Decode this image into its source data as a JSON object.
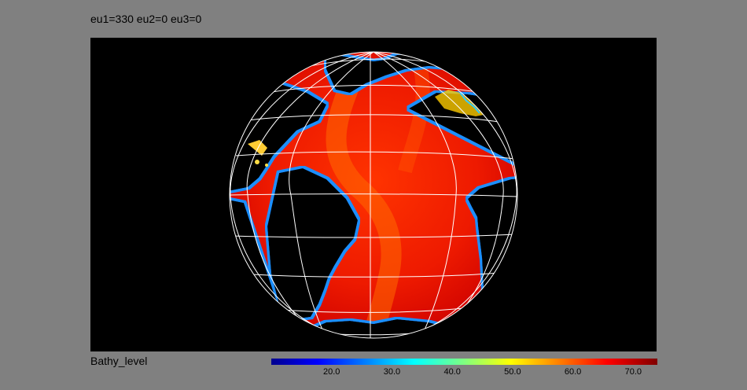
{
  "title": "eu1=330 eu2=0 eu3=0",
  "variable": "Bathy_level",
  "colorbar": {
    "colormap": "jet",
    "min": 10.0,
    "max": 74.0,
    "ticks": [
      "20.0",
      "30.0",
      "40.0",
      "50.0",
      "60.0",
      "70.0"
    ],
    "tick_values": [
      20.0,
      30.0,
      40.0,
      50.0,
      60.0,
      70.0
    ]
  },
  "map": {
    "projection": "orthographic",
    "background_color": "#000000",
    "land_color": "#000000",
    "grid_color": "#ffffff",
    "ocean_dominant_color": "#ee2200",
    "coast_color": "#1a8cff"
  }
}
